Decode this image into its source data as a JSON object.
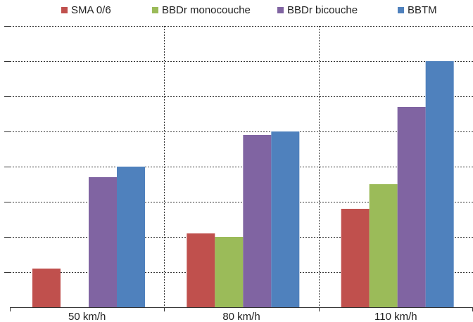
{
  "chart_data": {
    "type": "bar",
    "categories": [
      "50 km/h",
      "80 km/h",
      "110 km/h"
    ],
    "series": [
      {
        "name": "SMA 0/6",
        "color": "#c0504d",
        "values": [
          1.1,
          2.1,
          2.8
        ]
      },
      {
        "name": "BBDr monocouche",
        "color": "#9bbb59",
        "values": [
          null,
          2.0,
          3.5
        ]
      },
      {
        "name": "BBDr bicouche",
        "color": "#8064a2",
        "values": [
          3.7,
          4.9,
          5.7
        ]
      },
      {
        "name": "BBTM",
        "color": "#4f81bd",
        "values": [
          4.0,
          5.0,
          7.0
        ]
      }
    ],
    "ylim": [
      0,
      8
    ],
    "grid": true,
    "legend_position": "top",
    "title": "",
    "xlabel": "",
    "ylabel": ""
  }
}
